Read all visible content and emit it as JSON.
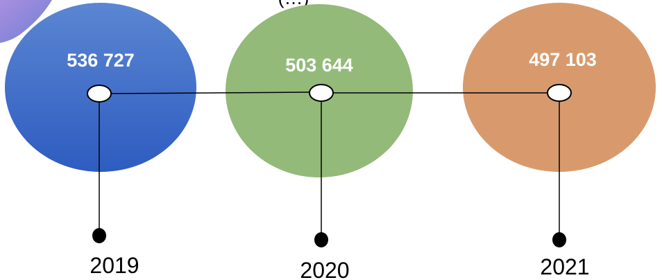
{
  "header_partial_text": "(…)",
  "colors": {
    "corner_accent": "#8a7fd6",
    "circle_2019": "#3563c4",
    "circle_2020": "#93ba79",
    "circle_2021": "#d89a6d",
    "connector": "#000000"
  },
  "nodes": [
    {
      "year": "2019",
      "value": "536 727"
    },
    {
      "year": "2020",
      "value": "503 644"
    },
    {
      "year": "2021",
      "value": "497 103"
    }
  ]
}
